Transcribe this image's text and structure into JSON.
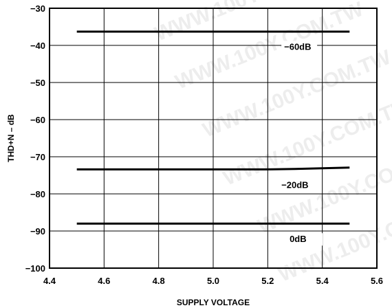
{
  "chart_data": {
    "type": "line",
    "xlabel": "SUPPLY VOLTAGE",
    "ylabel": "THD+N – dB",
    "xlim": [
      4.4,
      5.6
    ],
    "ylim": [
      -100,
      -30
    ],
    "xticks": [
      4.4,
      4.6,
      4.8,
      5.0,
      5.2,
      5.4,
      5.6
    ],
    "xtick_labels": [
      "4.4",
      "4.6",
      "4.8",
      "5.0",
      "5.2",
      "5.4",
      "5.6"
    ],
    "yticks": [
      -30,
      -40,
      -50,
      -60,
      -70,
      -80,
      -90,
      -100
    ],
    "ytick_labels": [
      "−30",
      "−40",
      "−50",
      "−60",
      "−70",
      "−80",
      "−90",
      "−100"
    ],
    "grid": true,
    "series": [
      {
        "name": "−60dB",
        "x": [
          4.5,
          5.5
        ],
        "y": [
          -36.3,
          -36.3
        ]
      },
      {
        "name": "−20dB",
        "x": [
          4.5,
          5.0,
          5.2,
          5.3,
          5.5
        ],
        "y": [
          -73.4,
          -73.4,
          -73.4,
          -73.3,
          -72.9
        ]
      },
      {
        "name": "0dB",
        "x": [
          4.5,
          5.5
        ],
        "y": [
          -88.0,
          -88.0
        ]
      }
    ],
    "watermark_text": "WWW.100Y.COM.TW"
  }
}
